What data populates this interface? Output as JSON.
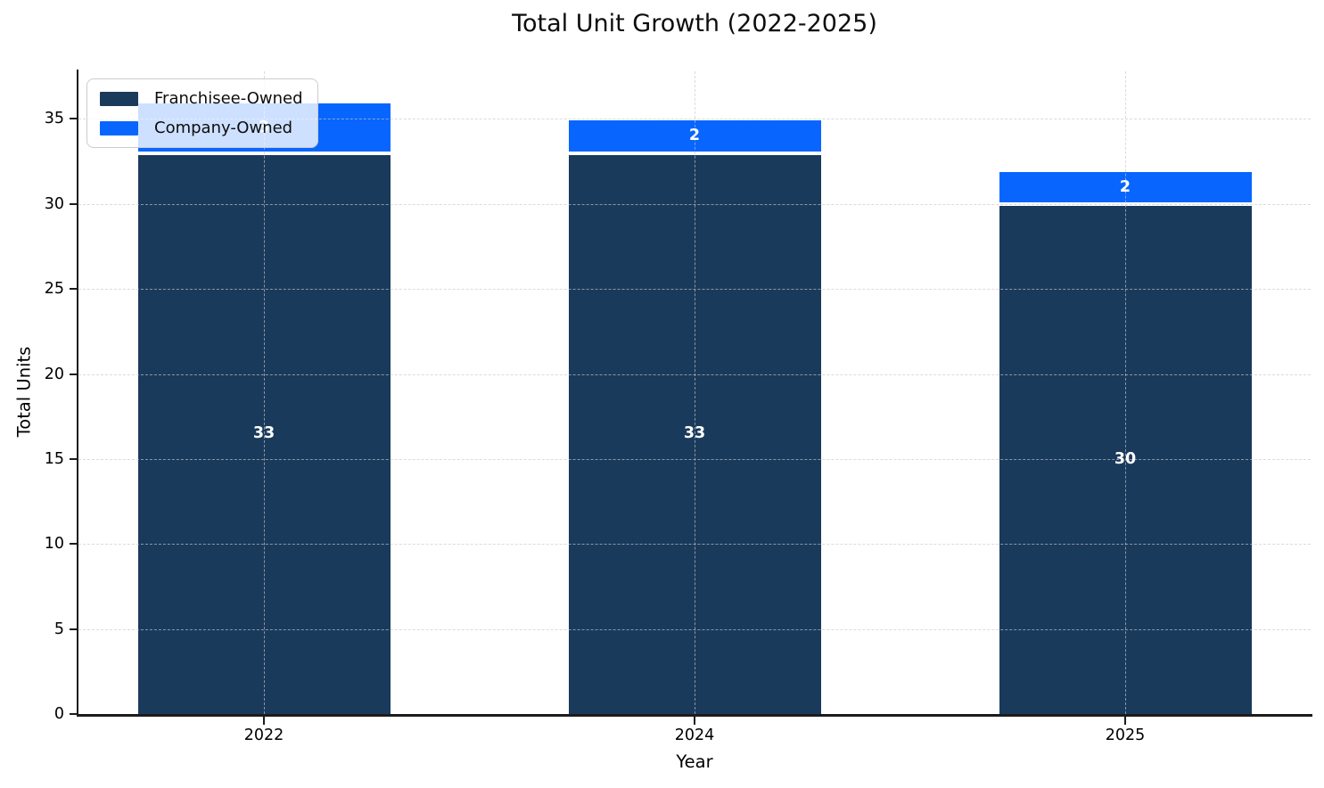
{
  "title": "Total Unit Growth (2022-2025)",
  "chart_data": {
    "type": "bar",
    "stacked": true,
    "title": "Total Unit Growth (2022-2025)",
    "xlabel": "Year",
    "ylabel": "Total Units",
    "categories": [
      "2022",
      "2024",
      "2025"
    ],
    "series": [
      {
        "name": "Franchisee-Owned",
        "color": "#1a3a5c",
        "values": [
          33,
          33,
          30
        ]
      },
      {
        "name": "Company-Owned",
        "color": "#0866ff",
        "values": [
          3,
          2,
          2
        ]
      }
    ],
    "totals": [
      36,
      35,
      32
    ],
    "segment_value_labels": [
      [
        "33",
        "33",
        "30"
      ],
      [
        "3",
        "2",
        "2"
      ]
    ],
    "value_label_color": "#ffffff",
    "yticks": [
      0,
      5,
      10,
      15,
      20,
      25,
      30,
      35
    ],
    "ylim": [
      0,
      37.8
    ],
    "grid": {
      "show": true,
      "style": "dashed",
      "axes": "both",
      "color": "#c8c8c8"
    },
    "legend": {
      "position": "upper-left",
      "entries": [
        "Franchisee-Owned",
        "Company-Owned"
      ]
    }
  }
}
